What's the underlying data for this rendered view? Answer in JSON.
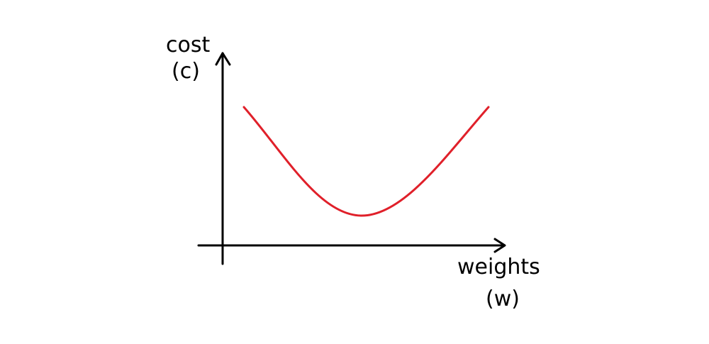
{
  "y_axis": {
    "label_line1": "cost",
    "label_line2": "(c)"
  },
  "x_axis": {
    "label_line1": "weights",
    "label_line2": "(w)"
  },
  "colors": {
    "curve": "#e0202a",
    "axes": "#000000",
    "background": "#ffffff"
  },
  "curve": {
    "shape": "convex-u",
    "has_single_minimum": true
  }
}
